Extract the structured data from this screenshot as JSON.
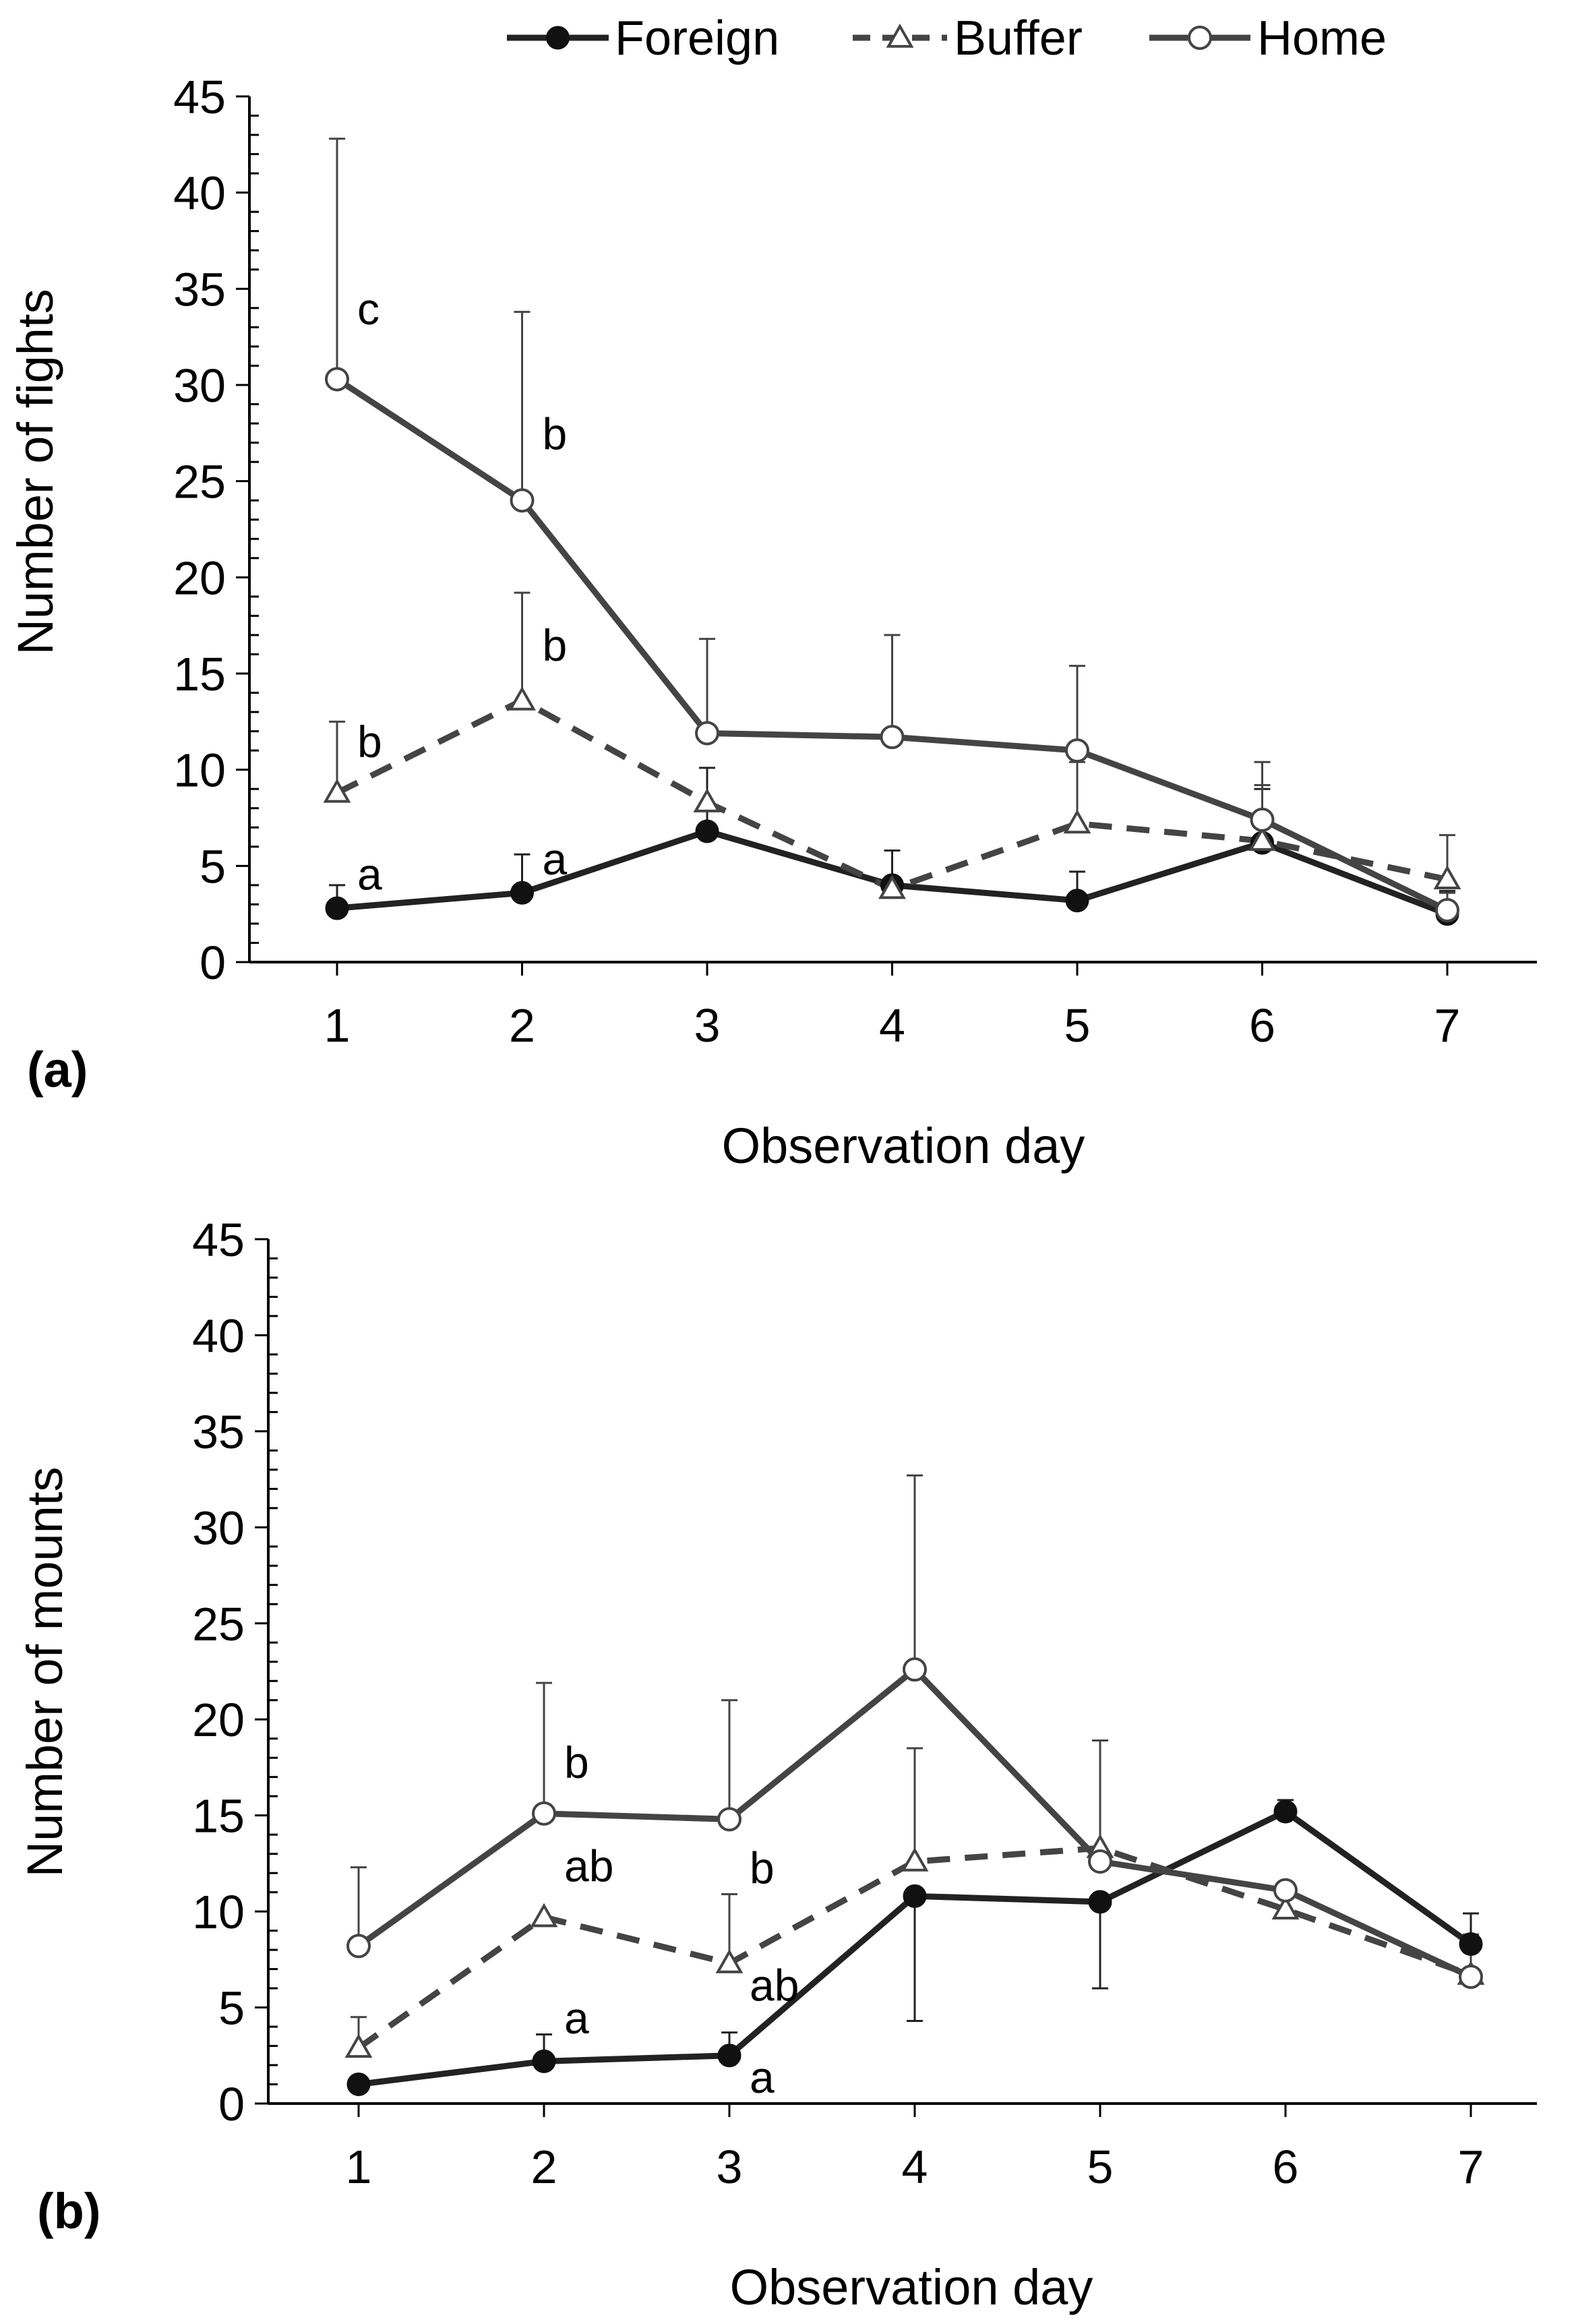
{
  "legend": {
    "items": [
      {
        "name": "Foreign",
        "marker": "filled-circle",
        "line": "solid",
        "color": "#222222"
      },
      {
        "name": "Buffer",
        "marker": "open-triangle",
        "line": "dashed",
        "color": "#444444"
      },
      {
        "name": "Home",
        "marker": "open-circle",
        "line": "solid",
        "color": "#444444"
      }
    ]
  },
  "chart_data": [
    {
      "type": "line",
      "panel_label": "(a)",
      "xlabel": "Observation day",
      "ylabel": "Number of fights",
      "categories": [
        "1",
        "2",
        "3",
        "4",
        "5",
        "6",
        "7"
      ],
      "ylim": [
        0,
        45
      ],
      "yticks": [
        "0",
        "5",
        "10",
        "15",
        "20",
        "25",
        "30",
        "35",
        "40",
        "45"
      ],
      "series": [
        {
          "name": "Foreign",
          "values": [
            2.8,
            3.6,
            6.8,
            4.0,
            3.2,
            6.2,
            2.5
          ],
          "err": [
            1.2,
            2.0,
            3.3,
            1.8,
            1.5,
            2.8,
            1.2
          ]
        },
        {
          "name": "Buffer",
          "values": [
            8.8,
            13.6,
            8.3,
            3.8,
            7.2,
            6.3,
            4.3
          ],
          "err": [
            3.7,
            5.6,
            0,
            0,
            3.2,
            2.9,
            2.3
          ]
        },
        {
          "name": "Home",
          "values": [
            30.3,
            24.0,
            11.9,
            11.7,
            11.0,
            7.4,
            2.7
          ],
          "err": [
            12.5,
            9.8,
            4.9,
            5.3,
            4.4,
            3.0,
            0.9
          ]
        }
      ],
      "annotations": [
        {
          "text": "c",
          "x": "1",
          "y": 34
        },
        {
          "text": "b",
          "x": "2",
          "y": 27.5
        },
        {
          "text": "b",
          "x": "2",
          "y": 16.5
        },
        {
          "text": "b",
          "x": "1",
          "y": 11.5
        },
        {
          "text": "a",
          "x": "1",
          "y": 4.6
        },
        {
          "text": "a",
          "x": "2",
          "y": 5.4
        }
      ]
    },
    {
      "type": "line",
      "panel_label": "(b)",
      "xlabel": "Observation day",
      "ylabel": "Number of mounts",
      "categories": [
        "1",
        "2",
        "3",
        "4",
        "5",
        "6",
        "7"
      ],
      "ylim": [
        0,
        45
      ],
      "yticks": [
        "0",
        "5",
        "10",
        "15",
        "20",
        "25",
        "30",
        "35",
        "40",
        "45"
      ],
      "series": [
        {
          "name": "Foreign",
          "values": [
            1.0,
            2.2,
            2.5,
            10.8,
            10.5,
            15.2,
            8.3
          ],
          "err": [
            0,
            1.4,
            1.2,
            0,
            0,
            0.6,
            1.6
          ]
        },
        {
          "name": "Buffer",
          "values": [
            2.9,
            9.7,
            7.3,
            12.6,
            13.3,
            10.1,
            6.7
          ],
          "err": [
            1.6,
            0,
            3.6,
            5.9,
            5.6,
            1.3,
            0
          ]
        },
        {
          "name": "Home",
          "values": [
            8.2,
            15.1,
            14.8,
            22.6,
            12.6,
            11.1,
            6.6
          ],
          "err": [
            4.1,
            6.8,
            6.2,
            10.1,
            0,
            0,
            2.2
          ]
        }
      ],
      "err_down": {
        "Foreign": [
          0,
          0,
          0,
          6.5,
          4.5,
          0,
          0
        ]
      },
      "annotations": [
        {
          "text": "b",
          "x": "2",
          "y": 17.8
        },
        {
          "text": "b",
          "x": "3",
          "y": 12.3
        },
        {
          "text": "ab",
          "x": "2",
          "y": 12.4
        },
        {
          "text": "ab",
          "x": "3",
          "y": 6.2
        },
        {
          "text": "a",
          "x": "2",
          "y": 4.5
        },
        {
          "text": "a",
          "x": "3",
          "y": 1.4
        }
      ]
    }
  ]
}
